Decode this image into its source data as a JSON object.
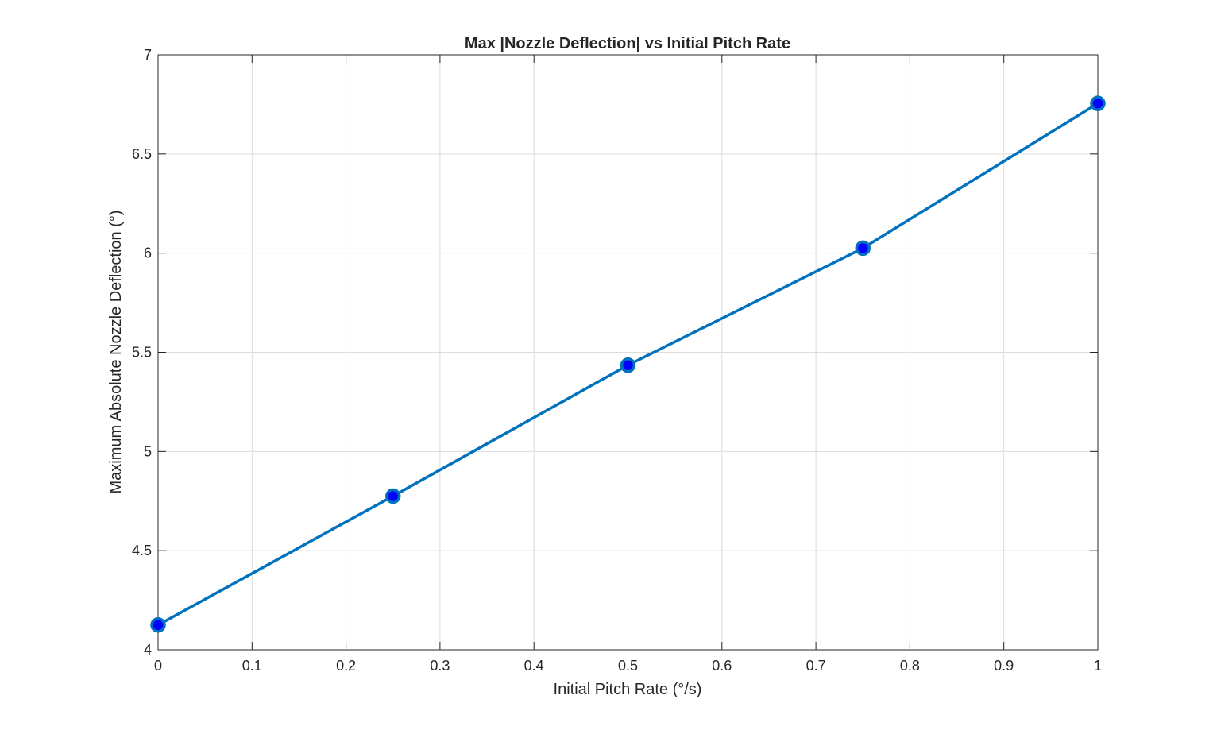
{
  "chart_data": {
    "type": "line",
    "title": "Max |Nozzle Deflection| vs Initial Pitch Rate",
    "xlabel": "Initial Pitch Rate (°/s)",
    "ylabel": "Maximum Absolute Nozzle Deflection (°)",
    "xlim": [
      0,
      1
    ],
    "ylim": [
      4,
      7
    ],
    "grid": true,
    "legend": "none",
    "x_ticks": [
      "0",
      "0.1",
      "0.2",
      "0.3",
      "0.4",
      "0.5",
      "0.6",
      "0.7",
      "0.8",
      "0.9",
      "1"
    ],
    "y_ticks": [
      "4",
      "4.5",
      "5",
      "5.5",
      "6",
      "6.5",
      "7"
    ],
    "series": [
      {
        "x": [
          0,
          0.25,
          0.5,
          0.75,
          1.0
        ],
        "y": [
          4.125,
          4.775,
          5.435,
          6.025,
          6.755
        ],
        "line_color": "#0072BD",
        "marker_fill": "#0000FF",
        "marker": "circle"
      }
    ]
  }
}
